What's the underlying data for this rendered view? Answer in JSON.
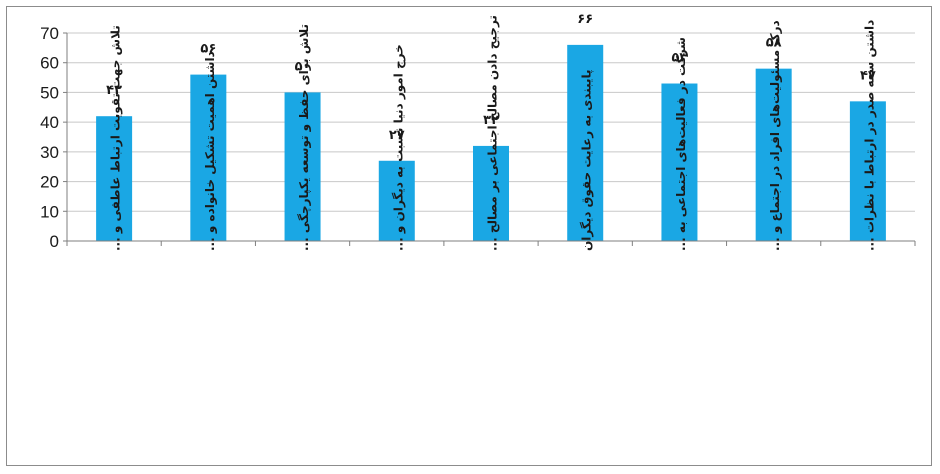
{
  "chart_data": {
    "type": "bar",
    "categories": [
      "تلاش جهت تقویت ارتباط عاطفی و ...",
      "داشتن اهمیت تشکیل خانواده و ...",
      "تلاش برای حفظ و توسعه یکپارچگی ...",
      "خرج امور دنیا نسبت به دیگران و ...",
      "ترجیح دادن مصالح اجتماعی بر مصالح ...",
      "پایبندی به رعایت حقوق دیگران",
      "شرکت در فعالیت‌های اجتماعی به ...",
      "درک مسئولیت‌های افراد در اجتماع و ...",
      "داشتن سعه صدر در ارتباط با نظرات ..."
    ],
    "values": [
      42,
      56,
      50,
      27,
      32,
      66,
      53,
      58,
      47
    ],
    "value_labels": [
      "۴۲",
      "۵۶",
      "۵۰",
      "۲۷",
      "۳۲",
      "۶۶",
      "۵۳",
      "۵۸",
      "۴۷"
    ],
    "yticks": [
      0,
      10,
      20,
      30,
      40,
      50,
      60,
      70
    ],
    "ylim": [
      0,
      70
    ],
    "grid": true,
    "title": "",
    "xlabel": "",
    "ylabel": "",
    "colors": {
      "bar": "#1aa7e4",
      "grid": "#c8c8c8",
      "axis": "#7f7f7f"
    }
  }
}
